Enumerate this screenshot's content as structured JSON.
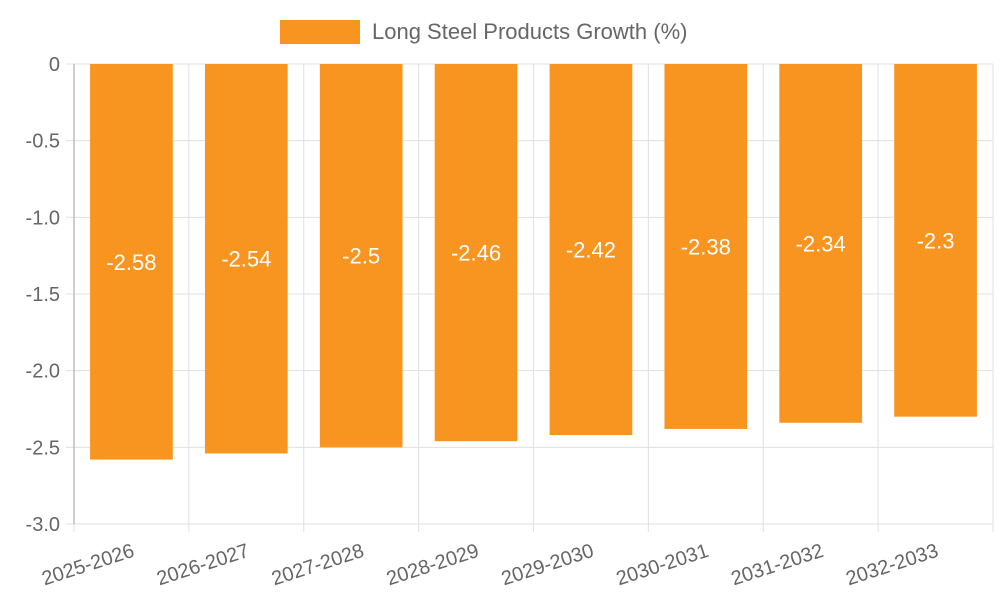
{
  "chart_data": {
    "type": "bar",
    "categories": [
      "2025-2026",
      "2026-2027",
      "2027-2028",
      "2028-2029",
      "2029-2030",
      "2030-2031",
      "2031-2032",
      "2032-2033"
    ],
    "series": [
      {
        "name": "Long Steel Products Growth (%)",
        "values": [
          -2.58,
          -2.54,
          -2.5,
          -2.46,
          -2.42,
          -2.38,
          -2.34,
          -2.3
        ]
      }
    ],
    "data_labels": [
      "-2.58",
      "-2.54",
      "-2.5",
      "-2.46",
      "-2.42",
      "-2.38",
      "-2.34",
      "-2.3"
    ],
    "y_ticks": [
      0,
      -0.5,
      -1.0,
      -1.5,
      -2.0,
      -2.5,
      -3.0
    ],
    "y_tick_labels": [
      "0",
      "-0.5",
      "-1.0",
      "-1.5",
      "-2.0",
      "-2.5",
      "-3.0"
    ],
    "ylim": [
      -3.0,
      0
    ],
    "grid": true,
    "legend_position": "top",
    "title": "",
    "xlabel": "",
    "ylabel": "",
    "colors": {
      "bar": "#f79520",
      "grid": "#e0e0e0",
      "axis": "#bdbdbd",
      "text": "#666666",
      "label": "#ffffff"
    }
  }
}
